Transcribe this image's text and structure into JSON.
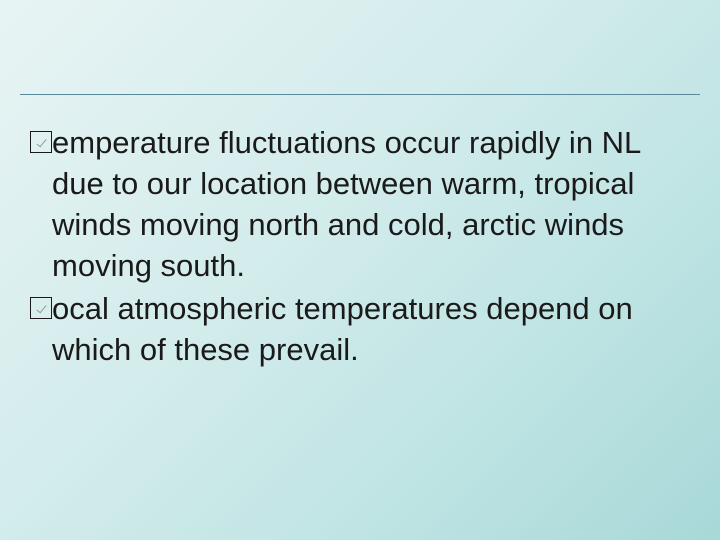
{
  "slide": {
    "background_gradient": [
      "#e8f4f4",
      "#d4ecec",
      "#c0e4e4",
      "#a8d8d8"
    ],
    "divider_color": "#5a8a9a",
    "text_color": "#1a1a1a",
    "font_family": "Arial",
    "font_size_pt": 24,
    "bullets": [
      {
        "marker": "checkbox",
        "text_first_line_fragment": "emperature fluctuations occur",
        "text_continuation": "rapidly in NL due to our location between warm, tropical winds moving north and cold, arctic winds moving south."
      },
      {
        "marker": "checkbox",
        "text_first_line_fragment": "ocal atmospheric temperatures",
        "text_continuation": "depend on which of these prevail."
      }
    ]
  }
}
